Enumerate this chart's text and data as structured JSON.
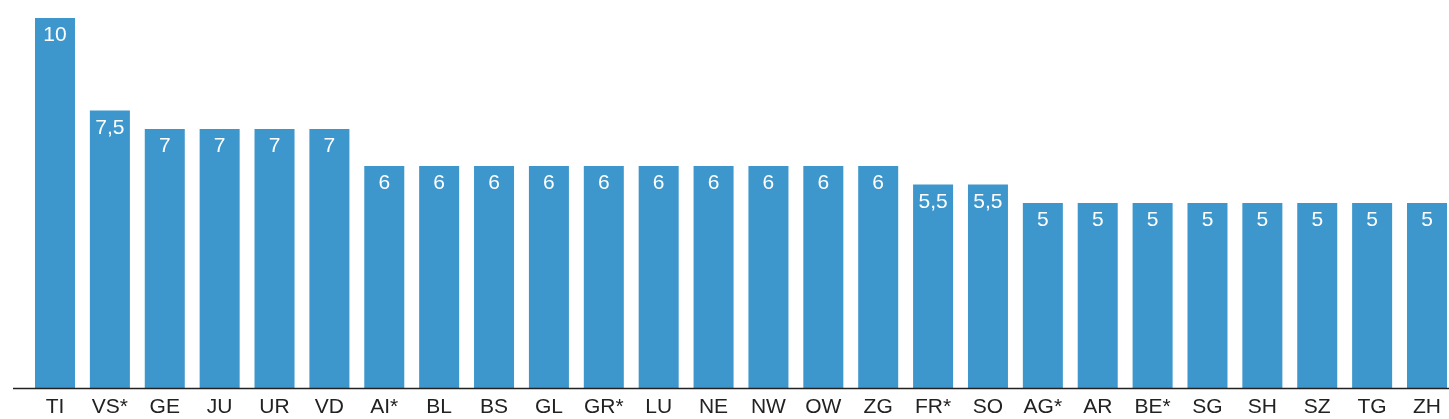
{
  "chart_data": {
    "type": "bar",
    "categories": [
      "TI",
      "VS*",
      "GE",
      "JU",
      "UR",
      "VD",
      "AI*",
      "BL",
      "BS",
      "GL",
      "GR*",
      "LU",
      "NE",
      "NW",
      "OW",
      "ZG",
      "FR*",
      "SO",
      "AG*",
      "AR",
      "BE*",
      "SG",
      "SH",
      "SZ",
      "TG",
      "ZH"
    ],
    "values": [
      10,
      7.5,
      7,
      7,
      7,
      7,
      6,
      6,
      6,
      6,
      6,
      6,
      6,
      6,
      6,
      6,
      5.5,
      5.5,
      5,
      5,
      5,
      5,
      5,
      5,
      5,
      5
    ],
    "value_labels": [
      "10",
      "7,5",
      "7",
      "7",
      "7",
      "7",
      "6",
      "6",
      "6",
      "6",
      "6",
      "6",
      "6",
      "6",
      "6",
      "6",
      "5,5",
      "5,5",
      "5",
      "5",
      "5",
      "5",
      "5",
      "5",
      "5",
      "5"
    ],
    "color": "#3d97cc",
    "ylim": [
      0,
      10
    ],
    "tick_labels": "x"
  }
}
